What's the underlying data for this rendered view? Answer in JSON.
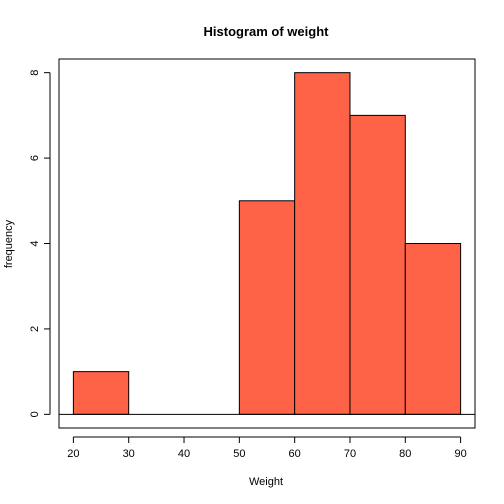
{
  "chart_data": {
    "type": "bar",
    "title": "Histogram of weight",
    "xlabel": "Weight",
    "ylabel": "frequency",
    "bins": [
      {
        "from": 20,
        "to": 30,
        "count": 1
      },
      {
        "from": 30,
        "to": 40,
        "count": 0
      },
      {
        "from": 40,
        "to": 50,
        "count": 0
      },
      {
        "from": 50,
        "to": 60,
        "count": 5
      },
      {
        "from": 60,
        "to": 70,
        "count": 8
      },
      {
        "from": 70,
        "to": 80,
        "count": 7
      },
      {
        "from": 80,
        "to": 90,
        "count": 4
      }
    ],
    "xlim": [
      17.4,
      92.6
    ],
    "ylim": [
      -0.32,
      8.32
    ],
    "xticks": [
      20,
      30,
      40,
      50,
      60,
      70,
      80,
      90
    ],
    "yticks": [
      0,
      2,
      4,
      6,
      8
    ],
    "grid": false,
    "bar_color": "#ff6347",
    "edge_color": "#000000"
  }
}
